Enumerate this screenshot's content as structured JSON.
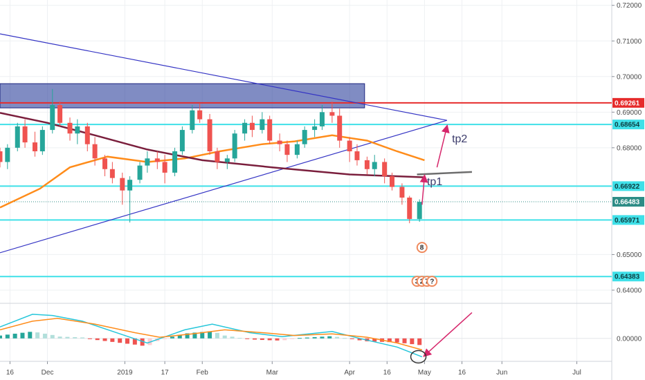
{
  "chart_data": {
    "type": "candlestick",
    "price_axis": {
      "ticks": [
        "0.72000",
        "0.71000",
        "0.70000",
        "0.69000",
        "0.68000",
        "0.65000",
        "0.64000"
      ],
      "ticks_values": [
        0.72,
        0.71,
        0.7,
        0.69,
        0.68,
        0.65,
        0.64
      ]
    },
    "price_range": [
      0.6365,
      0.7215
    ],
    "time_axis": {
      "labels": [
        "16",
        "Dec",
        "2019",
        "17",
        "Feb",
        "Mar",
        "Apr",
        "16",
        "May",
        "16",
        "Jun",
        "Jul"
      ],
      "start_date": "2018-11-12",
      "end_date": "2019-07-15",
      "label_dates": [
        "2018-11-16",
        "2018-12-01",
        "2019-01-01",
        "2019-01-17",
        "2019-02-01",
        "2019-03-01",
        "2019-04-01",
        "2019-04-16",
        "2019-05-01",
        "2019-05-16",
        "2019-06-01",
        "2019-07-01"
      ]
    },
    "horizontal_levels": [
      {
        "value": 0.69261,
        "label": "0.69261",
        "color": "#e62b2b"
      },
      {
        "value": 0.68654,
        "label": "0.68654",
        "color": "#3fe0e8"
      },
      {
        "value": 0.66922,
        "label": "0.66922",
        "color": "#3fe0e8"
      },
      {
        "value": 0.66483,
        "label": "0.66483",
        "color": "#2d8c86"
      },
      {
        "value": 0.65971,
        "label": "0.65971",
        "color": "#3fe0e8"
      },
      {
        "value": 0.64383,
        "label": "0.64383",
        "color": "#3fe0e8"
      }
    ],
    "resistance_zone": {
      "x_start": "2018-11-12",
      "x_end": "2019-04-07",
      "y_low": 0.6912,
      "y_high": 0.698,
      "color": "#2c3f9b"
    },
    "trendlines": [
      {
        "x1": "2018-11-12",
        "y1": 0.712,
        "x2": "2019-05-10",
        "y2": 0.6877,
        "color": "#3333c4"
      },
      {
        "x1": "2018-11-12",
        "y1": 0.6505,
        "x2": "2019-05-10",
        "y2": 0.6877,
        "color": "#3333c4"
      }
    ],
    "moving_averages": [
      {
        "color": "#ff8c1a",
        "points": [
          [
            "2018-11-12",
            0.6632
          ],
          [
            "2018-11-28",
            0.6685
          ],
          [
            "2018-12-10",
            0.6745
          ],
          [
            "2018-12-25",
            0.6775
          ],
          [
            "2019-01-10",
            0.676
          ],
          [
            "2019-01-25",
            0.677
          ],
          [
            "2019-02-08",
            0.679
          ],
          [
            "2019-02-25",
            0.681
          ],
          [
            "2019-03-10",
            0.6818
          ],
          [
            "2019-03-25",
            0.6835
          ],
          [
            "2019-04-08",
            0.682
          ],
          [
            "2019-04-20",
            0.679
          ],
          [
            "2019-05-01",
            0.6765
          ]
        ]
      },
      {
        "color": "#7a1e3c",
        "points": [
          [
            "2018-11-12",
            0.6898
          ],
          [
            "2018-12-01",
            0.687
          ],
          [
            "2018-12-20",
            0.6835
          ],
          [
            "2019-01-10",
            0.6795
          ],
          [
            "2019-02-01",
            0.6765
          ],
          [
            "2019-03-01",
            0.6745
          ],
          [
            "2019-04-01",
            0.6725
          ],
          [
            "2019-04-20",
            0.672
          ],
          [
            "2019-05-01",
            0.6717
          ]
        ]
      }
    ],
    "candles": [
      [
        "2018-11-12",
        0.679,
        0.68,
        0.6745,
        0.676
      ],
      [
        "2018-11-15",
        0.676,
        0.681,
        0.674,
        0.68
      ],
      [
        "2018-11-19",
        0.68,
        0.687,
        0.679,
        0.686
      ],
      [
        "2018-11-22",
        0.686,
        0.688,
        0.68,
        0.6815
      ],
      [
        "2018-11-26",
        0.6815,
        0.6845,
        0.6775,
        0.679
      ],
      [
        "2018-11-29",
        0.679,
        0.686,
        0.678,
        0.685
      ],
      [
        "2018-12-03",
        0.685,
        0.6965,
        0.684,
        0.692
      ],
      [
        "2018-12-06",
        0.692,
        0.693,
        0.686,
        0.687
      ],
      [
        "2018-12-10",
        0.687,
        0.6885,
        0.682,
        0.684
      ],
      [
        "2018-12-13",
        0.684,
        0.688,
        0.681,
        0.686
      ],
      [
        "2018-12-17",
        0.686,
        0.687,
        0.679,
        0.681
      ],
      [
        "2018-12-20",
        0.681,
        0.683,
        0.675,
        0.677
      ],
      [
        "2018-12-24",
        0.677,
        0.678,
        0.672,
        0.674
      ],
      [
        "2018-12-27",
        0.674,
        0.676,
        0.67,
        0.6715
      ],
      [
        "2018-12-31",
        0.6715,
        0.673,
        0.664,
        0.668
      ],
      [
        "2019-01-03",
        0.668,
        0.672,
        0.659,
        0.671
      ],
      [
        "2019-01-07",
        0.671,
        0.676,
        0.67,
        0.675
      ],
      [
        "2019-01-10",
        0.675,
        0.679,
        0.673,
        0.677
      ],
      [
        "2019-01-14",
        0.677,
        0.679,
        0.674,
        0.676
      ],
      [
        "2019-01-17",
        0.676,
        0.678,
        0.67,
        0.673
      ],
      [
        "2019-01-21",
        0.673,
        0.68,
        0.672,
        0.679
      ],
      [
        "2019-01-24",
        0.679,
        0.686,
        0.678,
        0.685
      ],
      [
        "2019-01-28",
        0.685,
        0.692,
        0.684,
        0.6905
      ],
      [
        "2019-01-31",
        0.6905,
        0.6925,
        0.687,
        0.688
      ],
      [
        "2019-02-04",
        0.688,
        0.6895,
        0.678,
        0.679
      ],
      [
        "2019-02-07",
        0.679,
        0.68,
        0.674,
        0.676
      ],
      [
        "2019-02-11",
        0.676,
        0.678,
        0.674,
        0.677
      ],
      [
        "2019-02-14",
        0.677,
        0.685,
        0.676,
        0.684
      ],
      [
        "2019-02-18",
        0.684,
        0.688,
        0.682,
        0.687
      ],
      [
        "2019-02-21",
        0.687,
        0.689,
        0.683,
        0.685
      ],
      [
        "2019-02-25",
        0.685,
        0.69,
        0.684,
        0.688
      ],
      [
        "2019-02-28",
        0.688,
        0.689,
        0.681,
        0.682
      ],
      [
        "2019-03-04",
        0.682,
        0.684,
        0.679,
        0.681
      ],
      [
        "2019-03-07",
        0.681,
        0.682,
        0.676,
        0.678
      ],
      [
        "2019-03-11",
        0.678,
        0.682,
        0.677,
        0.681
      ],
      [
        "2019-03-14",
        0.681,
        0.686,
        0.68,
        0.685
      ],
      [
        "2019-03-18",
        0.685,
        0.688,
        0.683,
        0.686
      ],
      [
        "2019-03-21",
        0.686,
        0.692,
        0.685,
        0.69
      ],
      [
        "2019-03-25",
        0.69,
        0.693,
        0.687,
        0.689
      ],
      [
        "2019-03-28",
        0.689,
        0.691,
        0.68,
        0.682
      ],
      [
        "2019-04-01",
        0.682,
        0.683,
        0.676,
        0.679
      ],
      [
        "2019-04-04",
        0.679,
        0.681,
        0.675,
        0.6765
      ],
      [
        "2019-04-08",
        0.6765,
        0.6775,
        0.6725,
        0.674
      ],
      [
        "2019-04-11",
        0.674,
        0.678,
        0.672,
        0.676
      ],
      [
        "2019-04-15",
        0.676,
        0.677,
        0.67,
        0.672
      ],
      [
        "2019-04-18",
        0.672,
        0.673,
        0.668,
        0.669
      ],
      [
        "2019-04-22",
        0.669,
        0.67,
        0.664,
        0.666
      ],
      [
        "2019-04-25",
        0.666,
        0.6665,
        0.6588,
        0.66
      ],
      [
        "2019-04-29",
        0.66,
        0.6655,
        0.6592,
        0.6648
      ]
    ],
    "badges": [
      {
        "label": "8",
        "date": "2019-04-30",
        "value": 0.652,
        "color": "#f08a5d"
      },
      {
        "label": "3",
        "date": "2019-04-28",
        "value": 0.6425,
        "color": "#f08a5d"
      },
      {
        "label": "2",
        "date": "2019-04-30",
        "value": 0.6425,
        "color": "#f08a5d"
      },
      {
        "label": "7",
        "date": "2019-05-02",
        "value": 0.6425,
        "color": "#f08a5d"
      },
      {
        "label": "?",
        "date": "2019-05-04",
        "value": 0.6425,
        "color": "#f08a5d"
      }
    ],
    "annotations": [
      {
        "text": "tp1",
        "date": "2019-05-02",
        "value": 0.6695
      },
      {
        "text": "tp2",
        "date": "2019-05-12",
        "value": 0.6815
      }
    ],
    "target_line": {
      "x1": "2019-04-28",
      "y1": 0.6725,
      "x2": "2019-05-20",
      "y2": 0.6732,
      "color": "#6d6d6d"
    },
    "arrows": [
      {
        "x1": "2019-04-30",
        "y1": 0.664,
        "x2": "2019-05-01",
        "y2": 0.672,
        "color": "#d6266b"
      },
      {
        "x1": "2019-05-06",
        "y1": 0.6745,
        "x2": "2019-05-10",
        "y2": 0.686,
        "color": "#d6266b"
      }
    ],
    "macd": {
      "zero_label": "0.00000",
      "range": [
        -0.004,
        0.006
      ],
      "macd_line": [
        [
          "2018-11-12",
          0.002
        ],
        [
          "2018-11-25",
          0.0042
        ],
        [
          "2018-12-03",
          0.004
        ],
        [
          "2018-12-15",
          0.003
        ],
        [
          "2019-01-01",
          0.0005
        ],
        [
          "2019-01-10",
          -0.0008
        ],
        [
          "2019-01-25",
          0.0015
        ],
        [
          "2019-02-05",
          0.0025
        ],
        [
          "2019-02-20",
          0.001
        ],
        [
          "2019-03-05",
          0.0003
        ],
        [
          "2019-03-25",
          0.0012
        ],
        [
          "2019-04-05",
          0.0
        ],
        [
          "2019-04-20",
          -0.0015
        ],
        [
          "2019-04-30",
          -0.0032
        ]
      ],
      "signal_line": [
        [
          "2018-11-12",
          0.0015
        ],
        [
          "2018-11-25",
          0.003
        ],
        [
          "2018-12-05",
          0.0035
        ],
        [
          "2018-12-20",
          0.0025
        ],
        [
          "2019-01-05",
          0.001
        ],
        [
          "2019-01-15",
          0.0002
        ],
        [
          "2019-01-28",
          0.0008
        ],
        [
          "2019-02-10",
          0.0015
        ],
        [
          "2019-02-25",
          0.001
        ],
        [
          "2019-03-10",
          0.0005
        ],
        [
          "2019-03-25",
          0.0008
        ],
        [
          "2019-04-08",
          0.0002
        ],
        [
          "2019-04-20",
          -0.0008
        ],
        [
          "2019-04-30",
          -0.002
        ]
      ],
      "histogram_colors": {
        "pos_strong": "#26a69a",
        "pos_weak": "#b2dfdb",
        "neg_strong": "#ef5350",
        "neg_weak": "#ffcdd2"
      }
    },
    "macd_pointer": {
      "x1": "2019-05-20",
      "y1": 0.0045,
      "x2": "2019-05-01",
      "y2": -0.003,
      "color": "#d6266b"
    },
    "macd_circle": {
      "date": "2019-04-28",
      "value": -0.0032
    }
  }
}
